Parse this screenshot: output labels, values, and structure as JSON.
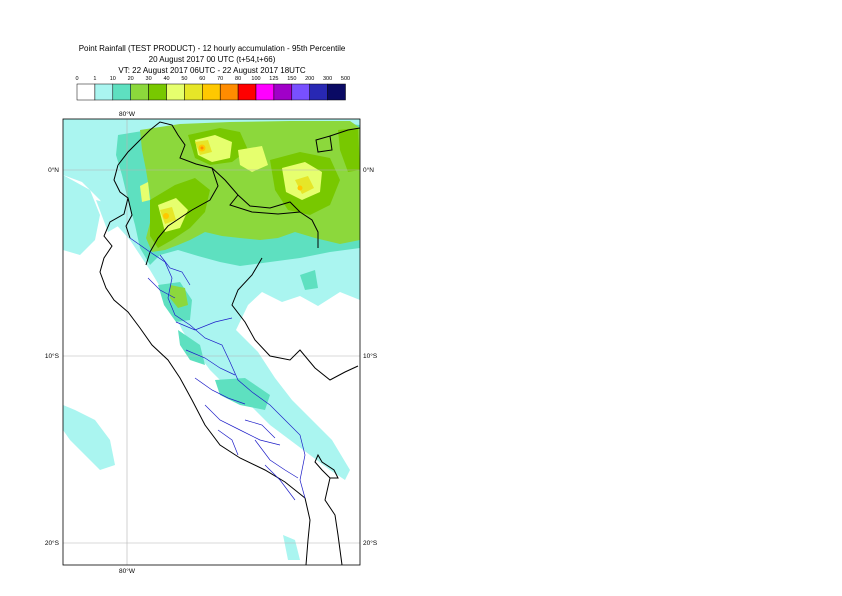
{
  "title": {
    "line1": "Point Rainfall (TEST PRODUCT) - 12 hourly accumulation - 95th Percentile",
    "line2": "20 August 2017 00 UTC (t+54,t+66)",
    "line3": "VT: 22 August 2017 06UTC - 22 August 2017 18UTC"
  },
  "legend": {
    "ticks": [
      "0",
      "1",
      "10",
      "20",
      "30",
      "40",
      "50",
      "60",
      "70",
      "80",
      "100",
      "125",
      "150",
      "200",
      "300",
      "500"
    ],
    "colors": [
      "#ffffff",
      "#aaf5f0",
      "#5ee0c0",
      "#8cd83c",
      "#78c800",
      "#e6ff6e",
      "#e6e628",
      "#ffc800",
      "#ff8c00",
      "#ff0000",
      "#ff00ff",
      "#a000c8",
      "#7850ff",
      "#2828b4",
      "#0a0a64"
    ]
  },
  "map": {
    "lon_labels": {
      "top": "80°W",
      "bottom": "80°W"
    },
    "lat_labels": [
      {
        "lat": 0,
        "left": "0°N",
        "right": "0°N"
      },
      {
        "lat": -10,
        "left": "10°S",
        "right": "10°S"
      },
      {
        "lat": -20,
        "left": "20°S",
        "right": "20°S"
      }
    ]
  }
}
